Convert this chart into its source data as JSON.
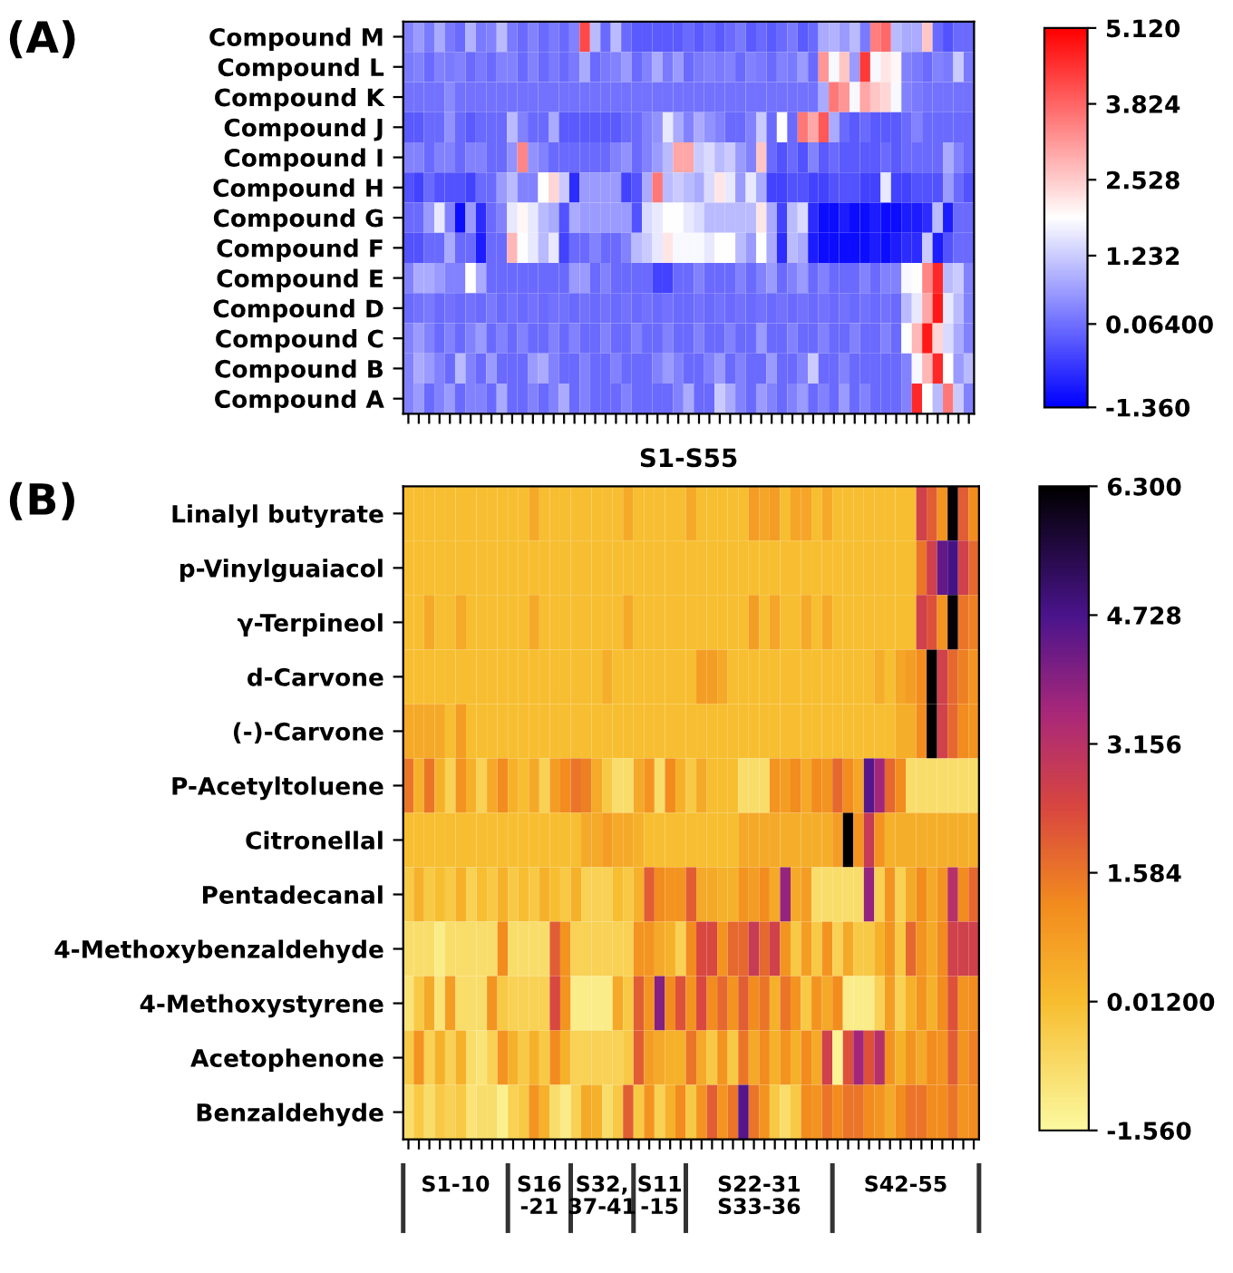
{
  "chart_data": [
    {
      "type": "heatmap",
      "title": "(A)",
      "xlabel": "S1-S55",
      "tick_labels": "y",
      "categories": [
        null,
        null,
        null,
        null,
        null,
        null,
        null,
        null,
        null,
        null,
        null,
        null,
        null,
        null,
        null,
        null,
        null,
        null,
        null,
        null,
        null,
        null,
        null,
        null,
        null,
        null,
        null,
        null,
        null,
        null,
        null,
        null,
        null,
        null,
        null,
        null,
        null,
        null,
        null,
        null,
        null,
        null,
        null,
        null,
        null,
        null,
        null,
        null,
        null,
        null,
        null,
        null,
        null,
        null,
        null
      ],
      "y_categories": [
        "Compound M",
        "Compound L",
        "Compound K",
        "Compound J",
        "Compound I",
        "Compound H",
        "Compound G",
        "Compound F",
        "Compound E",
        "Compound D",
        "Compound C",
        "Compound B",
        "Compound A"
      ],
      "clim": [
        -1.36,
        5.12
      ],
      "cticks": [
        {
          "value": -1.36,
          "label": "-1.360"
        },
        {
          "value": 0.064,
          "label": "0.06400"
        },
        {
          "value": 1.232,
          "label": "1.232"
        },
        {
          "value": 2.528,
          "label": "2.528"
        },
        {
          "value": 3.824,
          "label": "3.824"
        },
        {
          "value": 5.12,
          "label": "5.120"
        }
      ],
      "cells": [
        [
          0.3,
          0.6,
          0.2,
          0.8,
          0.2,
          0.0,
          0.9,
          0.2,
          0.3,
          1.0,
          0.2,
          0.0,
          0.3,
          0.0,
          0.2,
          0.0,
          0.3,
          4.2,
          1.0,
          0.0,
          1.0,
          0.0,
          -0.2,
          -0.2,
          -0.2,
          -0.2,
          -0.2,
          0.0,
          -0.2,
          0.0,
          -0.2,
          0.0,
          0.2,
          -0.2,
          0.0,
          -0.2,
          0.0,
          0.2,
          -0.2,
          0.0,
          0.8,
          0.9,
          0.6,
          1.0,
          0.2,
          3.5,
          3.8,
          1.0,
          0.8,
          0.8,
          2.6,
          0.0,
          -0.3,
          0.0,
          0.0
        ],
        [
          0.2,
          0.3,
          0.0,
          0.3,
          0.2,
          0.3,
          0.0,
          0.2,
          0.0,
          0.3,
          0.3,
          0.0,
          0.3,
          0.0,
          0.2,
          0.0,
          0.2,
          0.8,
          0.0,
          0.2,
          0.3,
          0.6,
          0.0,
          0.3,
          0.8,
          0.2,
          0.6,
          0.0,
          0.2,
          0.3,
          0.2,
          0.3,
          0.0,
          0.3,
          0.2,
          0.0,
          0.3,
          0.2,
          0.6,
          0.0,
          3.2,
          1.8,
          2.6,
          0.6,
          4.4,
          1.8,
          2.2,
          2.0,
          0.3,
          0.2,
          0.0,
          0.3,
          0.2,
          1.2,
          0.2
        ],
        [
          0.1,
          0.1,
          0.1,
          0.1,
          0.4,
          0.1,
          0.1,
          0.1,
          0.1,
          0.1,
          0.1,
          0.1,
          0.1,
          0.1,
          0.1,
          0.1,
          0.1,
          0.1,
          0.1,
          0.1,
          0.1,
          0.1,
          0.1,
          0.1,
          0.1,
          0.1,
          0.1,
          0.1,
          0.1,
          0.1,
          0.1,
          0.1,
          0.1,
          0.1,
          0.1,
          0.1,
          0.1,
          0.1,
          0.1,
          0.1,
          0.8,
          3.6,
          3.2,
          1.8,
          3.0,
          2.6,
          2.4,
          1.8,
          0.3,
          0.2,
          0.1,
          0.1,
          0.1,
          0.1,
          0.1
        ],
        [
          -0.2,
          -0.2,
          0.0,
          0.0,
          0.5,
          0.0,
          -0.2,
          0.0,
          0.0,
          0.0,
          1.0,
          0.3,
          0.0,
          0.0,
          0.8,
          -0.2,
          -0.2,
          -0.2,
          -0.2,
          -0.2,
          -0.2,
          0.0,
          0.0,
          0.3,
          0.5,
          1.6,
          0.8,
          0.3,
          0.8,
          0.5,
          0.3,
          0.0,
          0.0,
          0.3,
          1.2,
          0.0,
          1.9,
          0.0,
          3.6,
          3.0,
          4.0,
          0.8,
          0.0,
          -0.2,
          0.0,
          -0.2,
          -0.2,
          -0.2,
          0.0,
          0.3,
          0.0,
          0.0,
          0.0,
          0.0,
          0.0
        ],
        [
          0.3,
          0.3,
          0.0,
          0.3,
          0.3,
          0.0,
          0.3,
          0.3,
          0.0,
          0.0,
          0.5,
          3.4,
          0.5,
          0.3,
          0.0,
          0.0,
          0.0,
          0.0,
          0.0,
          0.0,
          0.3,
          0.5,
          0.0,
          0.3,
          0.6,
          1.0,
          3.0,
          3.0,
          1.2,
          1.4,
          1.0,
          1.2,
          0.6,
          0.3,
          2.6,
          0.0,
          -0.3,
          0.0,
          -0.3,
          0.3,
          -0.2,
          0.0,
          -0.2,
          -0.2,
          -0.2,
          -0.2,
          0.0,
          -0.2,
          0.0,
          0.0,
          0.0,
          0.0,
          0.8,
          0.3,
          0.0
        ],
        [
          -0.3,
          -0.5,
          0.0,
          -0.3,
          -0.3,
          -0.3,
          -0.5,
          0.0,
          0.0,
          0.6,
          1.0,
          0.3,
          0.3,
          1.9,
          2.4,
          1.2,
          -0.8,
          0.6,
          0.6,
          0.6,
          0.6,
          -0.5,
          -0.3,
          0.8,
          3.6,
          1.0,
          1.2,
          1.0,
          0.8,
          1.4,
          2.2,
          1.6,
          0.6,
          1.6,
          0.8,
          -0.5,
          -0.5,
          -0.3,
          -0.3,
          -0.5,
          -0.5,
          -0.3,
          -0.3,
          -0.3,
          -0.5,
          -0.5,
          1.6,
          -0.5,
          -0.5,
          -0.3,
          -0.3,
          -0.3,
          0.6,
          0.0,
          -0.3
        ],
        [
          0.0,
          0.0,
          0.6,
          1.6,
          0.3,
          -1.2,
          0.6,
          -0.8,
          0.0,
          0.3,
          1.6,
          2.0,
          1.6,
          1.0,
          0.8,
          -0.3,
          0.8,
          0.6,
          0.6,
          0.6,
          0.6,
          0.6,
          -0.3,
          1.4,
          1.6,
          1.9,
          1.9,
          1.6,
          1.4,
          1.0,
          1.0,
          1.0,
          1.0,
          1.0,
          2.2,
          0.8,
          -0.5,
          1.0,
          1.4,
          -0.8,
          -1.2,
          -1.2,
          -1.0,
          -1.2,
          -1.2,
          -1.0,
          -1.2,
          -1.2,
          -1.0,
          -1.0,
          -0.8,
          1.0,
          -1.0,
          0.0,
          0.0
        ],
        [
          -0.3,
          -0.3,
          0.0,
          0.0,
          0.8,
          0.0,
          0.0,
          -1.0,
          0.0,
          0.0,
          2.8,
          1.9,
          1.6,
          1.0,
          1.6,
          -0.5,
          0.0,
          0.0,
          0.3,
          0.0,
          0.0,
          0.3,
          1.0,
          1.2,
          1.6,
          2.2,
          1.8,
          1.8,
          1.8,
          1.6,
          1.9,
          1.9,
          1.0,
          0.6,
          1.9,
          0.8,
          -0.8,
          1.0,
          0.8,
          -1.0,
          -1.2,
          -1.2,
          -1.2,
          -1.2,
          -1.2,
          -1.0,
          -1.2,
          -1.0,
          -0.8,
          -0.8,
          1.2,
          -1.0,
          -0.3,
          0.0,
          0.0
        ],
        [
          0.3,
          0.8,
          0.8,
          0.6,
          0.3,
          0.3,
          1.9,
          0.8,
          0.0,
          0.0,
          0.0,
          0.0,
          0.0,
          0.0,
          0.0,
          0.0,
          0.6,
          0.6,
          0.0,
          0.3,
          0.0,
          0.0,
          0.0,
          0.0,
          -0.5,
          -0.5,
          0.0,
          0.0,
          0.3,
          0.0,
          0.0,
          0.0,
          0.3,
          0.0,
          0.3,
          0.6,
          0.0,
          0.3,
          0.6,
          0.0,
          0.3,
          0.0,
          0.0,
          0.0,
          0.3,
          0.0,
          0.3,
          0.3,
          1.8,
          1.9,
          3.4,
          4.6,
          1.0,
          1.2,
          0.3
        ],
        [
          0.0,
          0.1,
          0.2,
          0.0,
          0.1,
          0.0,
          0.1,
          0.0,
          0.2,
          0.0,
          0.1,
          0.0,
          0.1,
          0.0,
          0.1,
          0.1,
          0.0,
          0.1,
          0.0,
          0.1,
          0.0,
          0.1,
          0.0,
          0.1,
          0.0,
          0.1,
          0.0,
          0.0,
          0.1,
          0.0,
          0.1,
          0.0,
          0.1,
          0.0,
          0.1,
          0.0,
          0.1,
          0.0,
          0.1,
          0.0,
          0.1,
          0.0,
          0.1,
          0.0,
          0.1,
          0.0,
          0.1,
          0.0,
          1.0,
          1.6,
          3.0,
          4.8,
          1.6,
          1.0,
          0.3
        ],
        [
          0.3,
          0.6,
          0.3,
          0.0,
          0.3,
          0.0,
          0.3,
          0.6,
          0.0,
          0.3,
          0.0,
          0.3,
          0.0,
          0.0,
          0.3,
          0.0,
          0.3,
          0.0,
          0.0,
          0.3,
          0.0,
          0.0,
          0.3,
          0.0,
          0.0,
          0.3,
          0.0,
          0.0,
          0.3,
          0.0,
          0.0,
          0.3,
          0.0,
          0.0,
          0.6,
          0.0,
          0.0,
          0.3,
          0.0,
          0.0,
          0.3,
          0.0,
          0.0,
          0.3,
          0.0,
          0.0,
          0.3,
          0.0,
          1.9,
          2.8,
          4.8,
          2.4,
          1.4,
          0.8,
          0.3
        ],
        [
          0.3,
          0.8,
          0.6,
          0.3,
          0.0,
          1.0,
          0.3,
          0.0,
          0.6,
          0.0,
          0.0,
          0.0,
          0.6,
          0.8,
          0.3,
          0.0,
          0.0,
          0.3,
          0.0,
          0.0,
          0.3,
          0.0,
          0.0,
          0.0,
          0.3,
          0.6,
          0.3,
          0.0,
          0.0,
          0.3,
          0.6,
          0.0,
          0.3,
          0.0,
          0.0,
          0.6,
          0.0,
          0.0,
          0.3,
          1.2,
          0.0,
          0.0,
          0.3,
          0.0,
          0.0,
          0.0,
          0.0,
          0.0,
          0.3,
          1.8,
          2.8,
          4.6,
          1.9,
          0.6,
          1.0
        ],
        [
          0.3,
          0.6,
          0.0,
          0.3,
          0.6,
          0.0,
          0.3,
          0.3,
          0.0,
          0.8,
          0.0,
          0.0,
          0.3,
          0.0,
          0.3,
          0.8,
          0.0,
          0.3,
          0.0,
          0.0,
          0.0,
          0.3,
          0.0,
          0.0,
          0.0,
          0.0,
          0.3,
          0.8,
          0.0,
          0.0,
          1.2,
          0.8,
          0.3,
          0.0,
          0.6,
          0.3,
          0.0,
          0.3,
          0.6,
          0.0,
          0.3,
          0.0,
          0.6,
          0.0,
          0.3,
          0.0,
          0.0,
          0.0,
          0.3,
          4.6,
          1.9,
          1.0,
          3.6,
          1.2,
          0.3
        ]
      ]
    },
    {
      "type": "heatmap",
      "title": "(B)",
      "tick_labels": "y",
      "categories": [
        null,
        null,
        null,
        null,
        null,
        null,
        null,
        null,
        null,
        null,
        null,
        null,
        null,
        null,
        null,
        null,
        null,
        null,
        null,
        null,
        null,
        null,
        null,
        null,
        null,
        null,
        null,
        null,
        null,
        null,
        null,
        null,
        null,
        null,
        null,
        null,
        null,
        null,
        null,
        null,
        null,
        null,
        null,
        null,
        null,
        null,
        null,
        null,
        null,
        null,
        null,
        null,
        null,
        null,
        null
      ],
      "y_categories": [
        "Linalyl butyrate",
        "p-Vinylguaiacol",
        "γ-Terpineol",
        "d-Carvone",
        "(-)-Carvone",
        "P-Acetyltoluene",
        "Citronellal",
        "Pentadecanal",
        "4-Methoxybenzaldehyde",
        "4-Methoxystyrene",
        "Acetophenone",
        "Benzaldehyde"
      ],
      "clim": [
        -1.56,
        6.3
      ],
      "cticks": [
        {
          "value": -1.56,
          "label": "-1.560"
        },
        {
          "value": 0.012,
          "label": "0.01200"
        },
        {
          "value": 1.584,
          "label": "1.584"
        },
        {
          "value": 3.156,
          "label": "3.156"
        },
        {
          "value": 4.728,
          "label": "4.728"
        },
        {
          "value": 6.3,
          "label": "6.300"
        }
      ],
      "annotations": [
        "S1-10",
        "S16\n-21",
        "S32,\n37-41",
        "S11\n-15",
        "S22-31\nS33-36",
        "S42-55"
      ],
      "cells": [
        [
          0,
          0,
          0,
          0,
          0,
          0,
          0,
          0,
          0,
          0,
          0,
          0,
          0.5,
          0,
          0,
          0,
          0,
          0,
          0,
          0,
          0,
          0.5,
          0,
          0,
          0,
          0,
          0,
          0.5,
          0,
          0,
          0,
          0,
          0,
          0.8,
          0.6,
          0.8,
          0,
          0.6,
          0.6,
          0,
          0.5,
          0,
          0,
          0,
          0,
          0,
          0,
          0,
          0,
          2.6,
          2.0,
          1.0,
          6.2,
          2.0,
          1.2
        ],
        [
          0,
          0,
          0,
          0,
          0,
          0,
          0,
          0,
          0,
          0,
          0,
          0,
          0,
          0,
          0,
          0,
          0,
          0,
          0,
          0,
          0,
          0,
          0,
          0,
          0,
          0,
          0,
          0,
          0,
          0,
          0,
          0,
          0,
          0,
          0,
          0,
          0,
          0,
          0,
          0,
          0,
          0,
          0,
          0,
          0,
          0,
          0,
          0,
          0,
          1.6,
          2.6,
          4.4,
          4.8,
          2.6,
          1.8
        ],
        [
          0,
          0,
          0.5,
          0,
          0,
          0.5,
          0,
          0,
          0,
          0,
          0,
          0,
          0.5,
          0,
          0,
          0,
          0,
          0,
          0,
          0,
          0,
          0.5,
          0,
          0,
          0,
          0,
          0,
          0,
          0,
          0,
          0,
          0,
          0,
          0.8,
          0,
          0.6,
          0,
          0,
          0.5,
          0,
          0.5,
          0,
          0,
          0,
          0,
          0,
          0,
          0,
          0,
          2.6,
          2.2,
          1.0,
          6.2,
          1.6,
          1.4
        ],
        [
          0,
          0,
          0,
          0,
          0,
          0,
          0,
          0,
          0,
          0,
          0,
          0,
          0,
          0,
          0,
          0,
          0,
          0,
          0,
          0.4,
          0,
          0,
          0,
          0,
          0,
          0,
          0,
          0,
          0.8,
          0.8,
          0.5,
          0,
          0,
          0,
          0,
          0,
          0,
          0,
          0,
          0,
          0,
          0,
          0,
          0,
          0,
          0.4,
          0,
          0.6,
          0.8,
          1.2,
          6.3,
          2.6,
          1.8,
          1.4,
          1.0
        ],
        [
          0.5,
          0.5,
          0.5,
          0.5,
          0,
          0.8,
          0,
          0,
          0,
          0,
          0,
          0,
          0,
          0,
          0,
          0,
          0,
          0,
          0,
          0,
          0,
          0,
          0,
          0,
          0,
          0,
          0,
          0,
          0,
          0,
          0,
          0,
          0,
          0,
          0,
          0,
          0,
          0,
          0,
          0,
          0,
          0,
          0,
          0,
          0,
          0,
          0,
          0.4,
          0.4,
          1.2,
          6.3,
          2.6,
          1.8,
          1.2,
          1.0
        ],
        [
          1.6,
          0.3,
          1.6,
          0.3,
          -0.5,
          1.0,
          0.3,
          -0.5,
          0.5,
          1.2,
          0.3,
          0.0,
          0.5,
          -0.5,
          0.8,
          1.2,
          1.6,
          1.4,
          0.5,
          -0.3,
          -0.8,
          -0.8,
          0.5,
          1.0,
          -0.8,
          1.2,
          0.3,
          -0.3,
          0.5,
          0.0,
          0.0,
          0.0,
          -0.8,
          -0.8,
          -0.8,
          1.0,
          0.8,
          1.2,
          0.5,
          1.2,
          1.0,
          1.8,
          1.2,
          0.6,
          4.6,
          3.6,
          1.8,
          1.2,
          -0.8,
          -0.8,
          -0.8,
          -0.8,
          -0.8,
          -0.8,
          -0.8
        ],
        [
          0,
          0,
          0,
          0,
          0,
          0,
          0,
          0,
          0,
          0,
          0,
          0,
          0,
          0,
          0,
          0,
          0,
          0.5,
          0.5,
          0.8,
          0.5,
          0.5,
          0.3,
          0,
          0,
          0,
          0,
          0,
          0,
          0,
          0,
          0,
          0.5,
          0.5,
          0.5,
          0.5,
          0.4,
          0.4,
          0.4,
          0.4,
          0.4,
          0.8,
          6.3,
          1.0,
          2.8,
          1.0,
          0.3,
          0.4,
          0.4,
          0.4,
          0.4,
          0.4,
          0.4,
          0.4,
          0.4
        ],
        [
          -0.3,
          0.3,
          -0.3,
          0.0,
          -0.3,
          0.3,
          -0.5,
          0.0,
          -0.3,
          0.3,
          -0.3,
          0.0,
          -0.3,
          0.3,
          0.0,
          -0.3,
          0.3,
          -0.5,
          -0.5,
          -0.5,
          0.0,
          -0.3,
          0.3,
          2.0,
          1.2,
          1.0,
          1.0,
          2.0,
          0.5,
          0.5,
          0.3,
          0.3,
          1.0,
          0.8,
          1.2,
          0.5,
          3.8,
          0.5,
          0.8,
          -0.8,
          -0.8,
          -0.8,
          -0.8,
          -0.8,
          3.8,
          -0.5,
          1.0,
          -0.5,
          0.5,
          1.2,
          0.5,
          1.0,
          3.2,
          1.2,
          1.8
        ],
        [
          -0.8,
          -0.8,
          -0.8,
          -1.2,
          -0.8,
          -0.8,
          -0.8,
          -0.8,
          -0.8,
          1.2,
          -0.8,
          -0.8,
          -0.8,
          -0.8,
          2.0,
          1.0,
          -0.5,
          -0.5,
          -0.5,
          -0.5,
          -0.5,
          -0.5,
          1.0,
          1.0,
          0.5,
          0.3,
          -0.5,
          1.2,
          2.4,
          2.4,
          1.0,
          1.8,
          1.8,
          2.8,
          1.8,
          2.6,
          1.0,
          -0.3,
          0.8,
          -0.3,
          1.0,
          -0.5,
          0.5,
          -0.3,
          -0.3,
          0.3,
          1.0,
          -0.3,
          1.8,
          1.0,
          0.5,
          1.2,
          2.6,
          2.6,
          2.6
        ],
        [
          -1.0,
          -0.3,
          0.5,
          -1.0,
          0.8,
          -0.8,
          -0.8,
          -0.8,
          1.0,
          -0.3,
          -0.5,
          -0.5,
          -0.5,
          -0.5,
          2.4,
          1.0,
          -1.2,
          -1.2,
          -1.2,
          -1.2,
          0.5,
          -0.3,
          2.0,
          1.0,
          4.0,
          1.2,
          2.2,
          1.0,
          2.4,
          1.2,
          1.8,
          1.0,
          2.0,
          1.2,
          1.6,
          0.3,
          1.6,
          1.0,
          -0.3,
          1.0,
          0.5,
          1.2,
          -1.2,
          -1.2,
          -1.2,
          -0.5,
          0.8,
          -0.5,
          0.3,
          1.0,
          0.3,
          1.2,
          2.2,
          1.0,
          1.2
        ],
        [
          -0.3,
          1.0,
          -0.5,
          0.3,
          -0.5,
          0.3,
          -0.8,
          -1.0,
          -0.5,
          1.0,
          0.3,
          -0.3,
          0.3,
          -0.3,
          1.2,
          0.3,
          -0.5,
          -0.5,
          -0.5,
          -0.5,
          -0.5,
          -0.3,
          2.0,
          0.8,
          0.5,
          0.3,
          0.3,
          1.6,
          0.5,
          -0.3,
          1.0,
          -0.3,
          1.6,
          0.5,
          1.2,
          0.3,
          1.0,
          0.3,
          1.2,
          0.5,
          2.6,
          -1.4,
          2.2,
          3.6,
          2.2,
          3.2,
          1.0,
          0.3,
          1.0,
          0.5,
          1.2,
          1.0,
          2.0,
          1.0,
          1.4
        ],
        [
          -0.8,
          -0.3,
          -0.8,
          -0.3,
          -0.5,
          -0.3,
          -1.0,
          -0.8,
          -0.8,
          -1.3,
          -0.5,
          -0.3,
          1.0,
          0.3,
          -0.8,
          -1.2,
          -0.5,
          0.5,
          0.3,
          -0.8,
          -0.3,
          2.0,
          -0.3,
          1.0,
          -0.5,
          0.3,
          1.2,
          -0.3,
          1.0,
          2.0,
          1.0,
          1.6,
          4.6,
          1.6,
          1.0,
          -0.3,
          -0.8,
          -0.3,
          1.2,
          1.0,
          1.6,
          1.2,
          1.6,
          1.6,
          1.2,
          1.0,
          0.5,
          1.2,
          1.6,
          1.6,
          1.2,
          1.2,
          1.6,
          1.0,
          1.2
        ]
      ]
    }
  ]
}
